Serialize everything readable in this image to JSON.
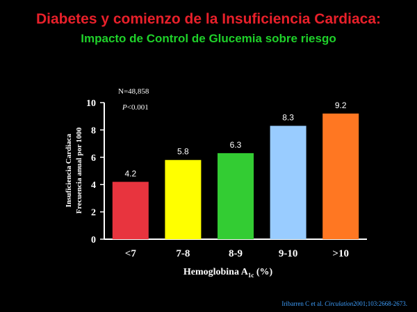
{
  "header": {
    "title": "Diabetes y comienzo  de la Insuficiencia Cardiaca:",
    "subtitle": "Impacto de Control de Glucemia sobre riesgo"
  },
  "stats": {
    "n": "N=48,858",
    "p_italic": "P",
    "p_rest": "<0.001"
  },
  "citation": {
    "authors": "Iribarren C et al.",
    "journal": "Circulation",
    "ref": "2001;103:2668-2673."
  },
  "chart_data": {
    "type": "bar",
    "categories": [
      "<7",
      "7-8",
      "8-9",
      "9-10",
      ">10"
    ],
    "values": [
      4.2,
      5.8,
      6.3,
      8.3,
      9.2
    ],
    "value_labels": [
      "4.2",
      "5.8",
      "6.3",
      "8.3",
      "9.2"
    ],
    "colors": [
      "#e8343e",
      "#ffff00",
      "#33cc33",
      "#99ccff",
      "#ff7722"
    ],
    "ylabel_line1": "Insuficiencia Cardiaca",
    "ylabel_line2": "Frecuencia anual por 1000",
    "xlabel_main": "Hemoglobina A",
    "xlabel_sub": "1c",
    "xlabel_tail": " (%)",
    "ylim": [
      0,
      10
    ],
    "yticks": [
      0,
      2,
      4,
      6,
      8,
      10
    ],
    "ytick_labels": [
      "0",
      "2",
      "4",
      "6",
      "8",
      "10"
    ]
  }
}
